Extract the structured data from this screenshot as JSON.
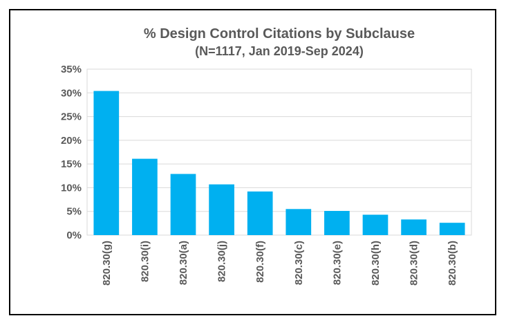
{
  "chart_data": {
    "type": "bar",
    "title": "% Design Control Citations by Subclause",
    "subtitle": "(N=1117, Jan 2019-Sep 2024)",
    "xlabel": "",
    "ylabel": "",
    "categories": [
      "820.30(g)",
      "820.30(i)",
      "820.30(a)",
      "820.30(j)",
      "820.30(f)",
      "820.30(c)",
      "820.30(e)",
      "820.30(h)",
      "820.30(d)",
      "820.30(b)"
    ],
    "values": [
      30.4,
      16.1,
      12.9,
      10.7,
      9.2,
      5.5,
      5.1,
      4.3,
      3.3,
      2.6
    ],
    "ylim": [
      0,
      35
    ],
    "yticks": [
      "0%",
      "5%",
      "10%",
      "15%",
      "20%",
      "25%",
      "30%",
      "35%"
    ],
    "grid": true,
    "legend": "none",
    "bar_color": "#00b0f0"
  }
}
